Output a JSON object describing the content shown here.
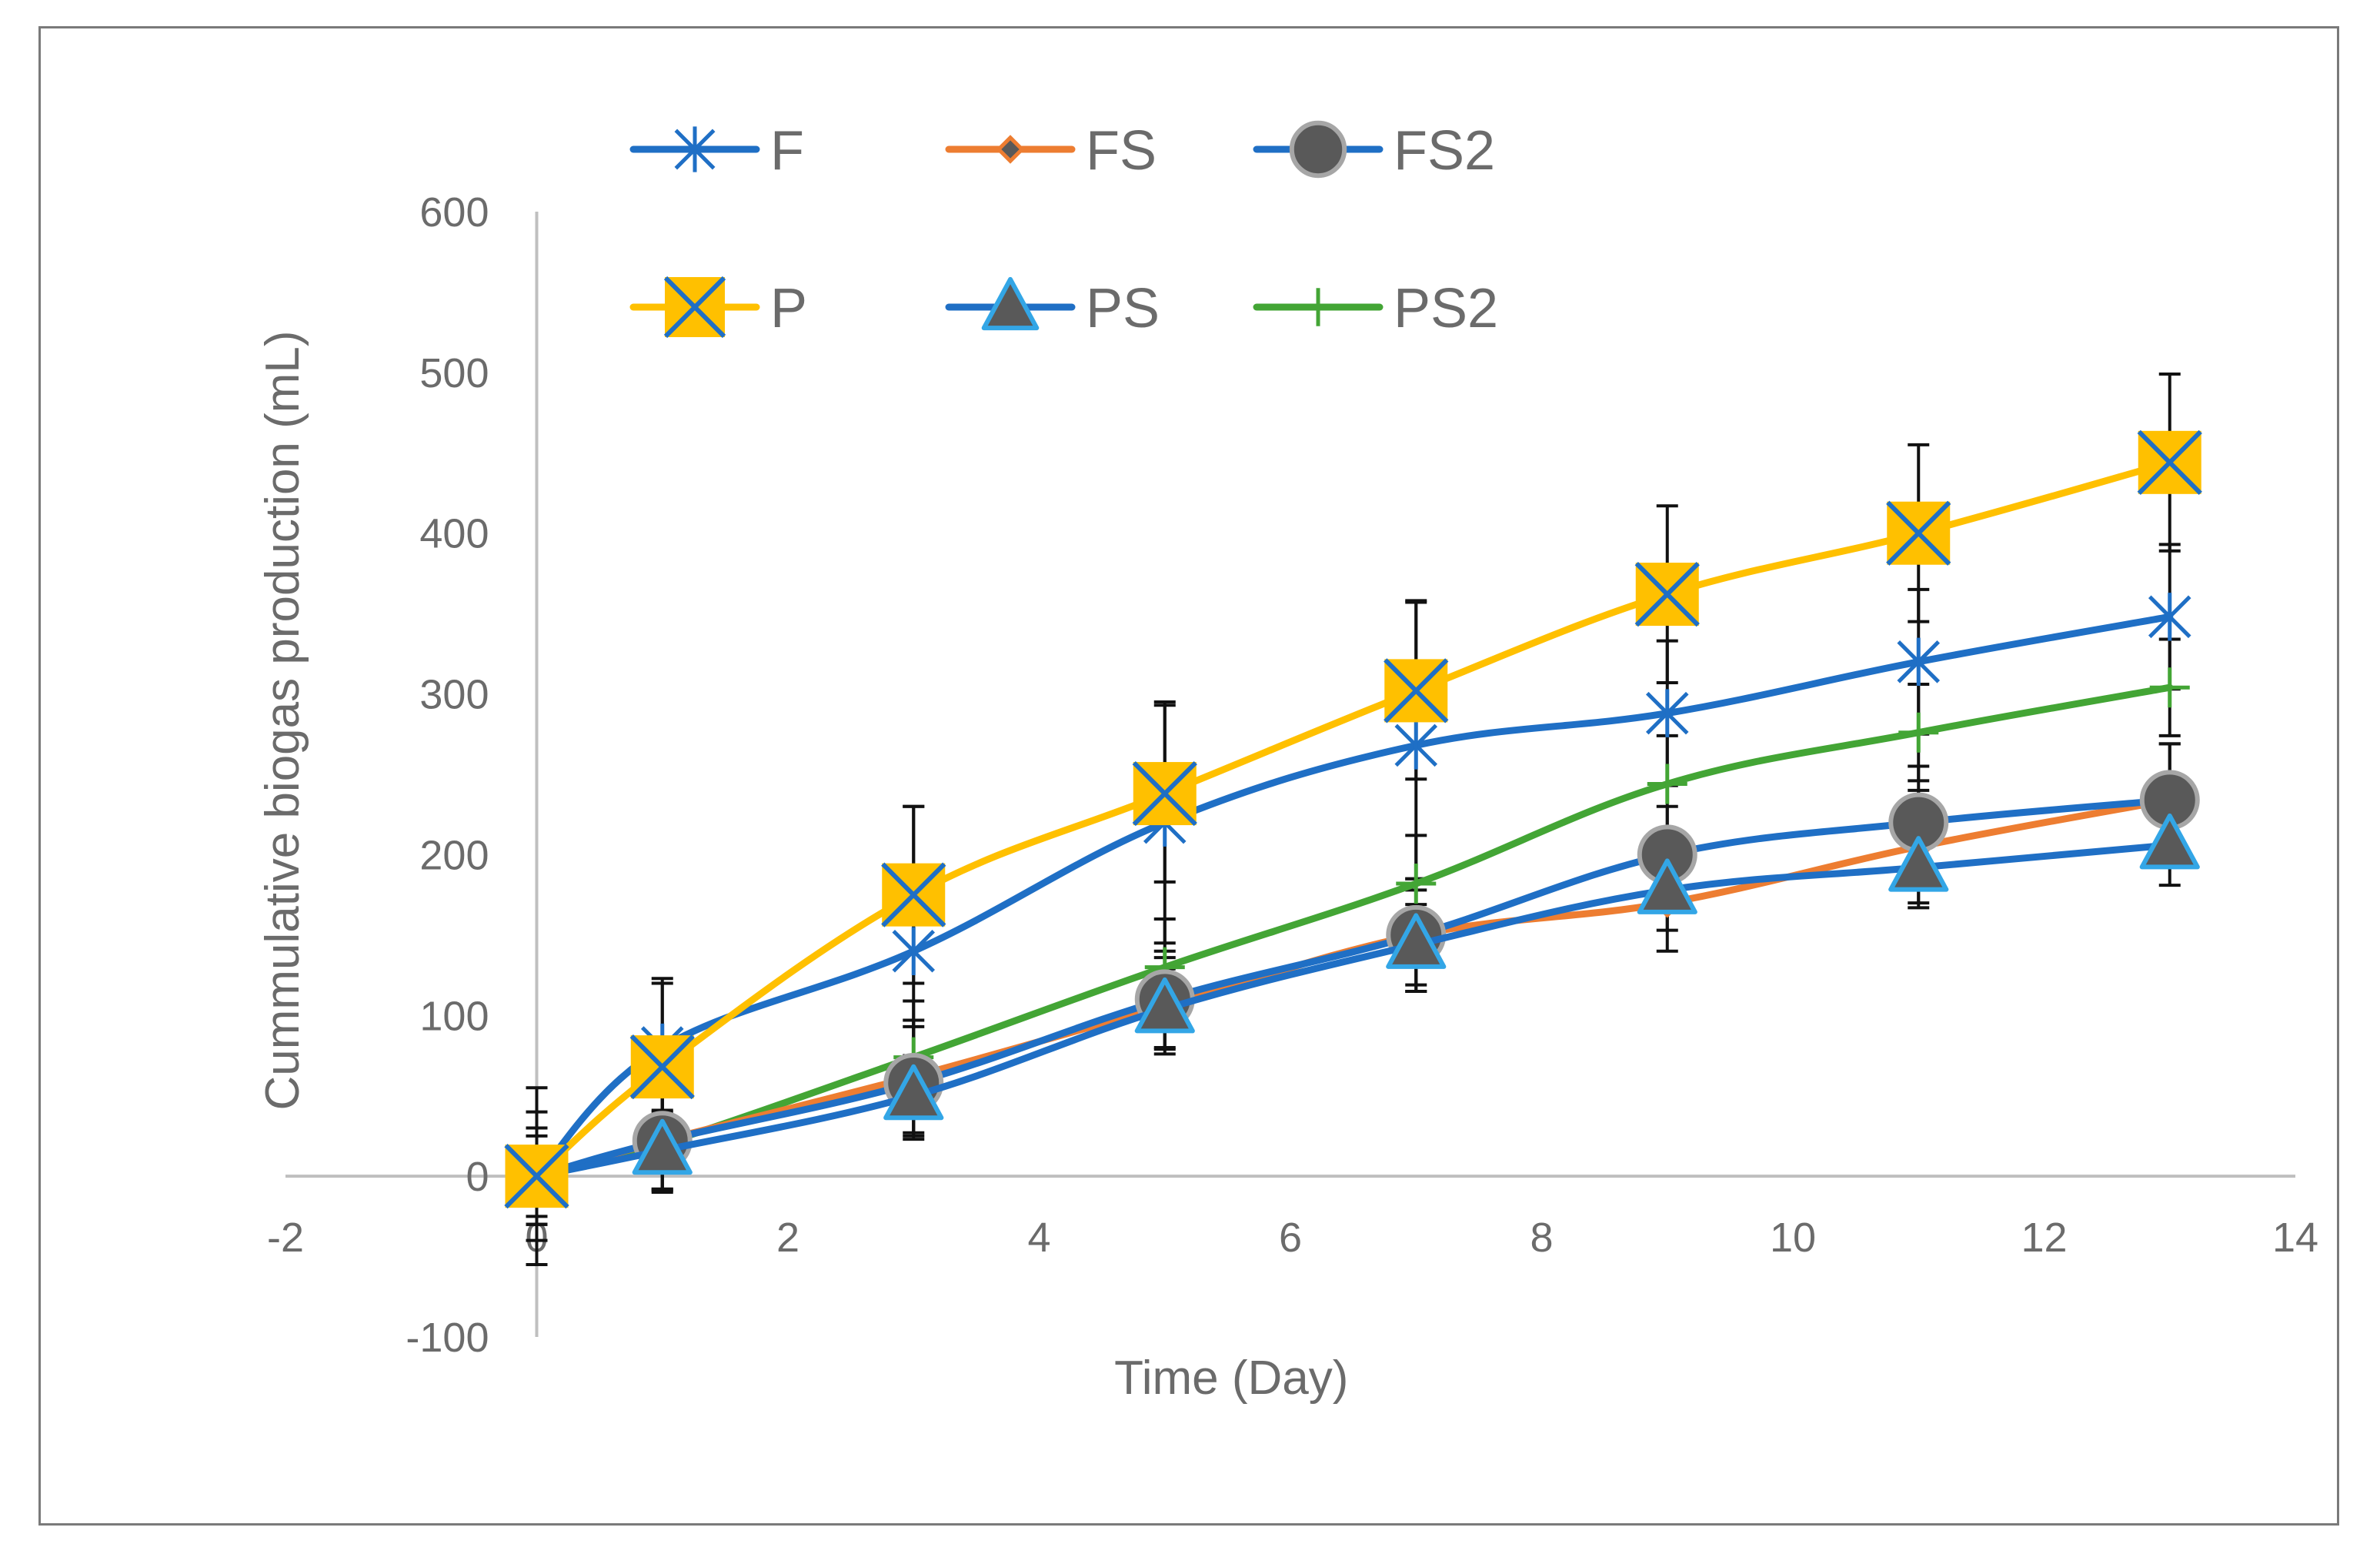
{
  "chart_data": {
    "type": "line",
    "title": "",
    "xlabel": "Time (Day)",
    "ylabel": "Cummulative biogas production (mL)",
    "xlim": [
      -2,
      14
    ],
    "ylim": [
      -100,
      600
    ],
    "xticks": [
      -2,
      0,
      2,
      4,
      6,
      8,
      10,
      12,
      14
    ],
    "yticks": [
      -100,
      0,
      100,
      200,
      300,
      400,
      500,
      600
    ],
    "grid": false,
    "legend_position": "top",
    "x": [
      0,
      1,
      3,
      5,
      7,
      9,
      11,
      13
    ],
    "series": [
      {
        "name": "F",
        "color": "#1f6fc5",
        "marker": "asterisk",
        "values": [
          0,
          80,
          140,
          220,
          268,
          288,
          320,
          348
        ],
        "err": [
          40,
          40,
          90,
          75,
          90,
          45,
          45,
          45
        ]
      },
      {
        "name": "FS",
        "color": "#ed7d31",
        "marker": "diamond",
        "values": [
          0,
          22,
          62,
          106,
          150,
          170,
          205,
          234
        ],
        "err": [
          30,
          30,
          35,
          30,
          35,
          30,
          35,
          35
        ]
      },
      {
        "name": "FS2",
        "color": "#1f6fc5",
        "marker": "circle",
        "values": [
          0,
          22,
          58,
          110,
          150,
          200,
          220,
          234
        ],
        "err": [
          30,
          30,
          35,
          30,
          35,
          30,
          35,
          35
        ]
      },
      {
        "name": "P",
        "color": "#ffc000",
        "marker": "x-square",
        "values": [
          0,
          68,
          175,
          238,
          302,
          362,
          400,
          444
        ],
        "err": [
          55,
          55,
          55,
          55,
          55,
          55,
          55,
          55
        ]
      },
      {
        "name": "PS",
        "color": "#1f6fc5",
        "marker": "triangle",
        "values": [
          0,
          16,
          50,
          104,
          144,
          178,
          192,
          206
        ],
        "err": [
          25,
          25,
          25,
          25,
          25,
          25,
          25,
          25
        ]
      },
      {
        "name": "PS2",
        "color": "#43a535",
        "marker": "plus",
        "values": [
          0,
          20,
          74,
          130,
          182,
          244,
          276,
          304
        ],
        "err": [
          30,
          30,
          35,
          30,
          30,
          30,
          30,
          30
        ]
      }
    ]
  }
}
